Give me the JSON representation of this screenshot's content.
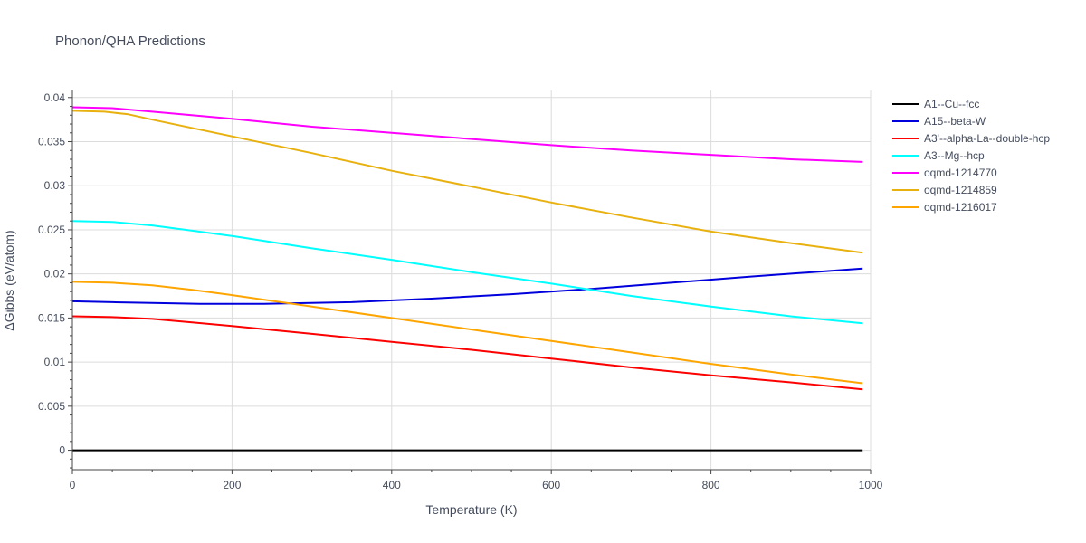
{
  "chart_data": {
    "type": "line",
    "title": "Phonon/QHA Predictions",
    "xlabel": "Temperature (K)",
    "ylabel": "ΔGibbs (eV/atom)",
    "xlim": [
      0,
      1000
    ],
    "ylim": [
      -0.0022,
      0.0408
    ],
    "xticks": [
      0,
      200,
      400,
      600,
      800,
      1000
    ],
    "xtick_labels": [
      "0",
      "200",
      "400",
      "600",
      "800",
      "1000"
    ],
    "yticks": [
      0,
      0.005,
      0.01,
      0.015,
      0.02,
      0.025,
      0.03,
      0.035,
      0.04
    ],
    "ytick_labels": [
      "0",
      "0.005",
      "0.01",
      "0.015",
      "0.02",
      "0.025",
      "0.03",
      "0.035",
      "0.04"
    ],
    "grid": true,
    "legend_position": "right",
    "series": [
      {
        "name": "A1--Cu--fcc",
        "color": "#000000",
        "x": [
          0,
          990
        ],
        "y": [
          0,
          0
        ]
      },
      {
        "name": "A15--beta-W",
        "color": "#0000dd",
        "x": [
          0,
          50,
          100,
          160,
          240,
          350,
          450,
          550,
          650,
          750,
          850,
          990
        ],
        "y": [
          0.0169,
          0.0168,
          0.0167,
          0.0166,
          0.0166,
          0.0168,
          0.0172,
          0.0177,
          0.0183,
          0.019,
          0.0197,
          0.0206
        ]
      },
      {
        "name": "A3'--alpha-La--double-hcp",
        "color": "#ff0000",
        "x": [
          0,
          50,
          100,
          150,
          200,
          300,
          400,
          500,
          600,
          700,
          800,
          900,
          990
        ],
        "y": [
          0.0152,
          0.0151,
          0.0149,
          0.0145,
          0.0141,
          0.0132,
          0.0123,
          0.0114,
          0.0104,
          0.0094,
          0.0085,
          0.0077,
          0.0069
        ]
      },
      {
        "name": "A3--Mg--hcp",
        "color": "#00ffff",
        "x": [
          0,
          50,
          100,
          150,
          200,
          300,
          400,
          500,
          600,
          700,
          800,
          900,
          990
        ],
        "y": [
          0.026,
          0.0259,
          0.0255,
          0.0249,
          0.0243,
          0.0229,
          0.0216,
          0.0202,
          0.0189,
          0.0175,
          0.0163,
          0.0152,
          0.0144
        ]
      },
      {
        "name": "oqmd-1214770",
        "color": "#ff00ff",
        "x": [
          0,
          50,
          100,
          200,
          300,
          400,
          500,
          600,
          700,
          800,
          900,
          990
        ],
        "y": [
          0.0389,
          0.0388,
          0.0384,
          0.0376,
          0.0367,
          0.036,
          0.0353,
          0.0346,
          0.034,
          0.0335,
          0.033,
          0.0327
        ]
      },
      {
        "name": "oqmd-1214859",
        "color": "#e8b10f",
        "x": [
          0,
          40,
          70,
          100,
          200,
          300,
          400,
          500,
          600,
          700,
          800,
          900,
          990
        ],
        "y": [
          0.0385,
          0.0384,
          0.0381,
          0.0375,
          0.0356,
          0.0337,
          0.0317,
          0.0299,
          0.0281,
          0.0264,
          0.0248,
          0.0235,
          0.0224
        ]
      },
      {
        "name": "oqmd-1216017",
        "color": "#ffa500",
        "x": [
          0,
          50,
          100,
          150,
          200,
          300,
          400,
          500,
          600,
          700,
          800,
          900,
          990
        ],
        "y": [
          0.0191,
          0.019,
          0.0187,
          0.0182,
          0.0176,
          0.0163,
          0.015,
          0.0137,
          0.0124,
          0.0111,
          0.0098,
          0.0086,
          0.0076
        ]
      }
    ]
  }
}
